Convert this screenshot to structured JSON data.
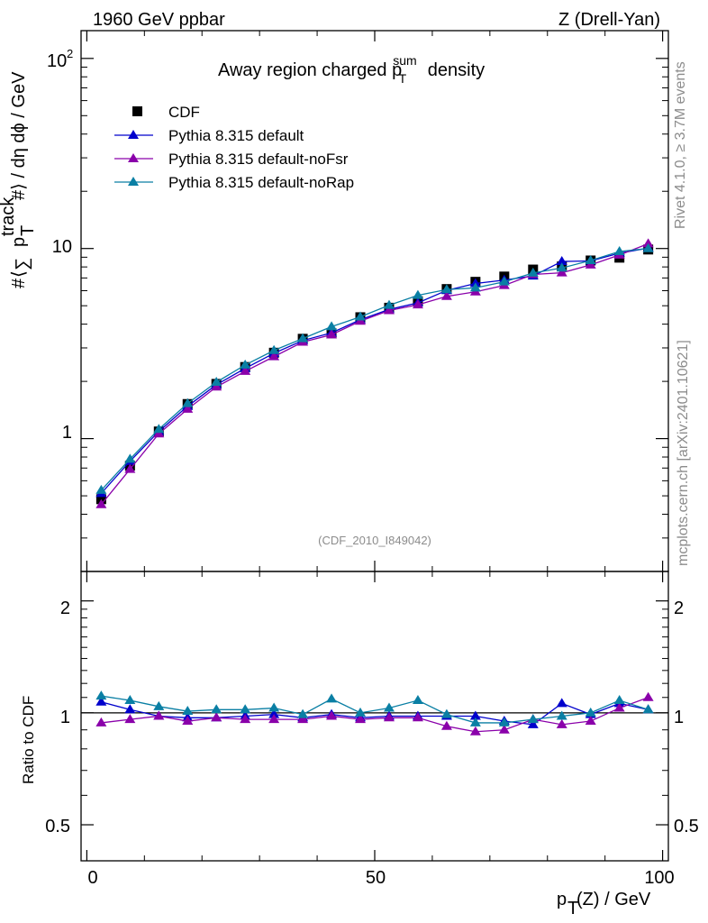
{
  "header": {
    "left": "1960 GeV ppbar",
    "right": "Z (Drell-Yan)"
  },
  "side": {
    "rivet": "Rivet 4.1.0, ≥ 3.7M events",
    "mcplots": "mcplots.cern.ch [arXiv:2401.10621]"
  },
  "analysis_label": "(CDF_2010_I849042)",
  "colors": {
    "CDF": "#000000",
    "default": "#0000cc",
    "noFsr": "#8a00aa",
    "noRap": "#0a7fa4"
  },
  "chart_data": [
    {
      "type": "scatter",
      "title": "Away region charged p_T^sum density",
      "title_main": "Away region charged p",
      "title_sup": "sum",
      "title_sub": "T",
      "title_tail": " density",
      "ylabel": "#⟨ ∑ p_T^track #⟩ / dη dϕ / GeV",
      "ylabel_parts": {
        "a": "#",
        "b": "⟨",
        "c": "∑",
        "d": "p",
        "e": "track",
        "f": "T",
        "g": "#⟩ / dη dϕ / GeV"
      },
      "yscale": "log",
      "ylim": [
        0.2,
        140
      ],
      "xlim": [
        -1,
        101
      ],
      "ytick_labels": {
        "one": "1",
        "ten": "10",
        "hundred_base": "10",
        "hundred_exp": "2"
      },
      "legend_position": "top-left",
      "x": [
        2.5,
        7.5,
        12.5,
        17.5,
        22.5,
        27.5,
        32.5,
        37.5,
        42.5,
        47.5,
        52.5,
        57.5,
        62.5,
        67.5,
        72.5,
        77.5,
        82.5,
        87.5,
        92.5,
        97.5
      ],
      "series": [
        {
          "name": "CDF",
          "marker": "square",
          "values": [
            0.48,
            0.72,
            1.09,
            1.52,
            1.94,
            2.38,
            2.83,
            3.35,
            3.58,
            4.35,
            4.88,
            5.28,
            6.12,
            6.68,
            7.12,
            7.75,
            8.05,
            8.65,
            8.95,
            9.88
          ]
        },
        {
          "name": "Pythia 8.315 default",
          "marker": "triangle",
          "values": [
            0.515,
            0.76,
            1.09,
            1.48,
            1.92,
            2.34,
            2.81,
            3.28,
            3.6,
            4.22,
            4.78,
            5.18,
            6.02,
            6.55,
            6.82,
            7.17,
            8.55,
            8.6,
            9.45,
            10.05
          ]
        },
        {
          "name": "Pythia 8.315 default-noFsr",
          "marker": "triangle",
          "values": [
            0.45,
            0.69,
            1.06,
            1.43,
            1.87,
            2.26,
            2.7,
            3.22,
            3.52,
            4.15,
            4.72,
            5.06,
            5.6,
            5.92,
            6.4,
            7.3,
            7.45,
            8.2,
            9.25,
            10.6
          ]
        },
        {
          "name": "Pythia 8.315 default-noRap",
          "marker": "triangle",
          "values": [
            0.535,
            0.78,
            1.12,
            1.53,
            1.98,
            2.44,
            2.91,
            3.36,
            3.88,
            4.37,
            5.03,
            5.67,
            6.08,
            6.21,
            6.68,
            7.43,
            7.9,
            8.65,
            9.65,
            10.0
          ]
        }
      ]
    },
    {
      "type": "scatter",
      "xlabel": "p_T(Z) / GeV",
      "xlabel_parts": {
        "a": "p",
        "b": "T",
        "c": "(Z) / GeV"
      },
      "ylabel": "Ratio to CDF",
      "ylim": [
        0.4,
        2.4
      ],
      "xlim": [
        -1,
        101
      ],
      "xtick_labels": [
        "0",
        "50",
        "100"
      ],
      "ytick_labels": [
        "0.5",
        "1",
        "2"
      ],
      "yticks": [
        0.5,
        1,
        2
      ],
      "xticks": [
        0,
        50,
        100
      ],
      "x": [
        2.5,
        7.5,
        12.5,
        17.5,
        22.5,
        27.5,
        32.5,
        37.5,
        42.5,
        47.5,
        52.5,
        57.5,
        62.5,
        67.5,
        72.5,
        77.5,
        82.5,
        87.5,
        92.5,
        97.5
      ],
      "series": [
        {
          "name": "Pythia 8.315 default",
          "values": [
            1.07,
            1.02,
            0.98,
            0.97,
            0.97,
            0.98,
            0.99,
            0.97,
            0.99,
            0.97,
            0.98,
            0.98,
            0.98,
            0.98,
            0.95,
            0.93,
            1.06,
            0.99,
            1.06,
            1.02
          ]
        },
        {
          "name": "Pythia 8.315 default-noFsr",
          "values": [
            0.94,
            0.96,
            0.98,
            0.95,
            0.97,
            0.96,
            0.96,
            0.96,
            0.98,
            0.96,
            0.97,
            0.97,
            0.92,
            0.89,
            0.9,
            0.96,
            0.93,
            0.95,
            1.03,
            1.1
          ]
        },
        {
          "name": "Pythia 8.315 default-noRap",
          "values": [
            1.11,
            1.08,
            1.04,
            1.01,
            1.02,
            1.02,
            1.03,
            0.99,
            1.09,
            1.0,
            1.03,
            1.08,
            0.99,
            0.94,
            0.94,
            0.96,
            0.98,
            1.0,
            1.08,
            1.02
          ]
        }
      ]
    }
  ]
}
